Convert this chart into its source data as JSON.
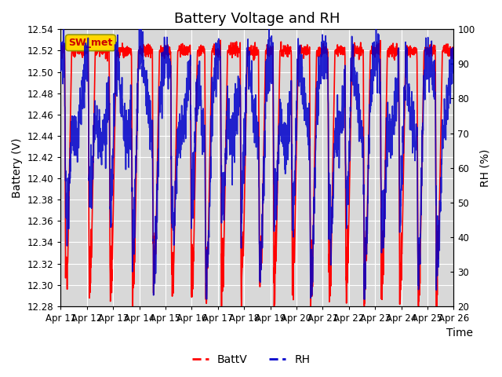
{
  "title": "Battery Voltage and RH",
  "xlabel": "Time",
  "ylabel_left": "Battery (V)",
  "ylabel_right": "RH (%)",
  "annotation": "SW_met",
  "batt_ylim": [
    12.28,
    12.54
  ],
  "rh_ylim": [
    20,
    100
  ],
  "batt_yticks": [
    12.28,
    12.3,
    12.32,
    12.34,
    12.36,
    12.38,
    12.4,
    12.42,
    12.44,
    12.46,
    12.48,
    12.5,
    12.52,
    12.54
  ],
  "rh_yticks": [
    20,
    30,
    40,
    50,
    60,
    70,
    80,
    90,
    100
  ],
  "xtick_labels": [
    "Apr 11",
    "Apr 12",
    "Apr 13",
    "Apr 14",
    "Apr 15",
    "Apr 16",
    "Apr 17",
    "Apr 18",
    "Apr 19",
    "Apr 20",
    "Apr 21",
    "Apr 22",
    "Apr 23",
    "Apr 24",
    "Apr 25",
    "Apr 26"
  ],
  "batt_color": "#FF0000",
  "rh_color": "#0000CC",
  "background_color": "#FFFFFF",
  "plot_bg_color": "#D8D8D8",
  "legend_batt": "BattV",
  "legend_rh": "RH",
  "title_fontsize": 13,
  "axis_label_fontsize": 10,
  "tick_fontsize": 8.5,
  "linewidth": 1.2,
  "grid_color": "#FFFFFF",
  "annotation_facecolor": "#FFD700",
  "annotation_edgecolor": "#999900",
  "annotation_text_color": "#CC0000"
}
